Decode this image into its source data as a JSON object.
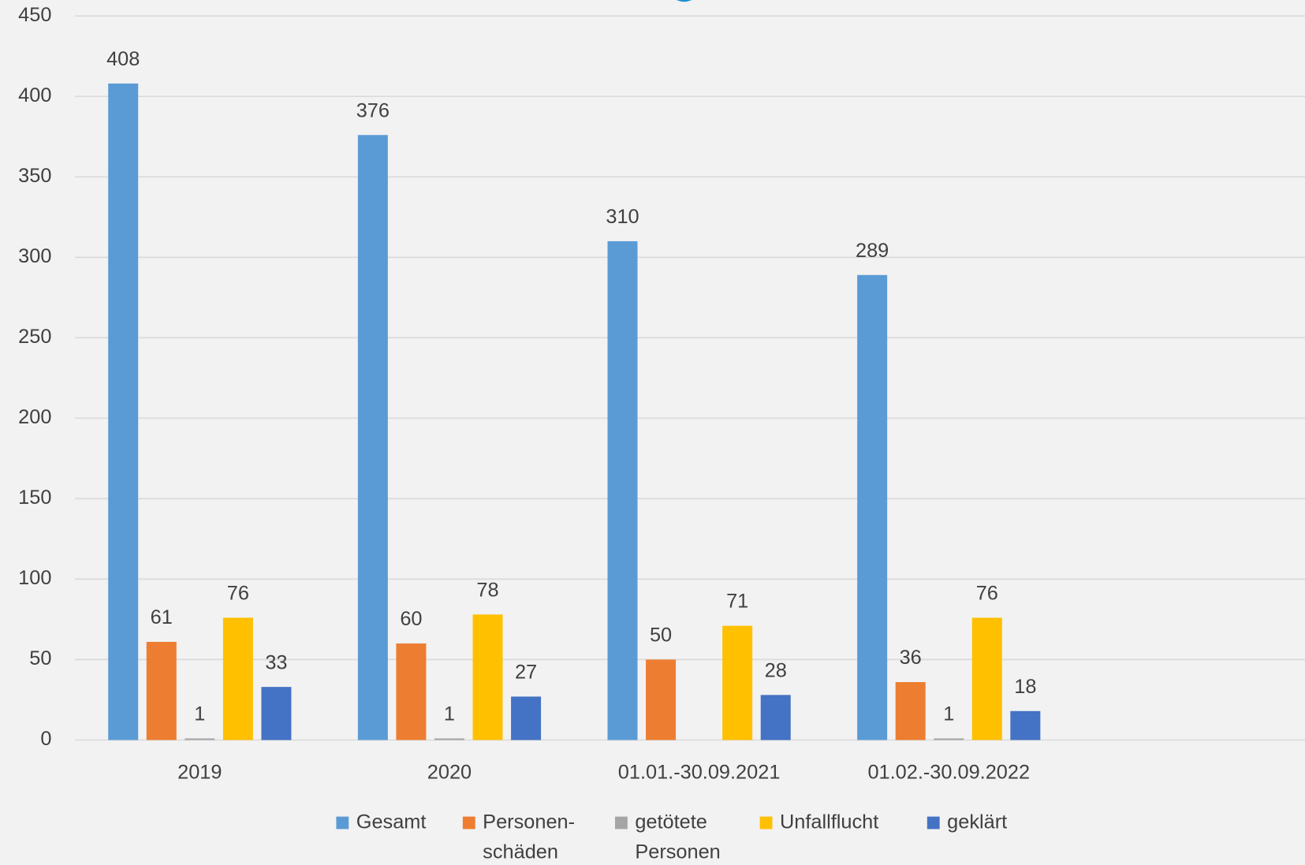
{
  "chart_data": {
    "type": "bar",
    "categories": [
      "2019",
      "2020",
      "01.01.-30.09.2021",
      "01.02.-30.09.2022",
      null
    ],
    "series": [
      {
        "name": "Gesamt",
        "color": "#5b9bd5",
        "values": [
          408,
          376,
          310,
          289,
          null
        ]
      },
      {
        "name": "Personen- schäden",
        "color": "#ed7d31",
        "values": [
          61,
          60,
          50,
          36,
          null
        ]
      },
      {
        "name": "getötete Personen",
        "color": "#a5a5a5",
        "values": [
          1,
          1,
          null,
          1,
          null
        ]
      },
      {
        "name": "Unfallflucht",
        "color": "#ffc000",
        "values": [
          76,
          78,
          71,
          76,
          null
        ]
      },
      {
        "name": "geklärt",
        "color": "#4472c4",
        "values": [
          33,
          27,
          28,
          18,
          null
        ]
      }
    ],
    "ylim": [
      0,
      450
    ],
    "yticks": [
      0,
      50,
      100,
      150,
      200,
      250,
      300,
      350,
      400,
      450
    ],
    "grid": true,
    "legend": "bottom"
  }
}
